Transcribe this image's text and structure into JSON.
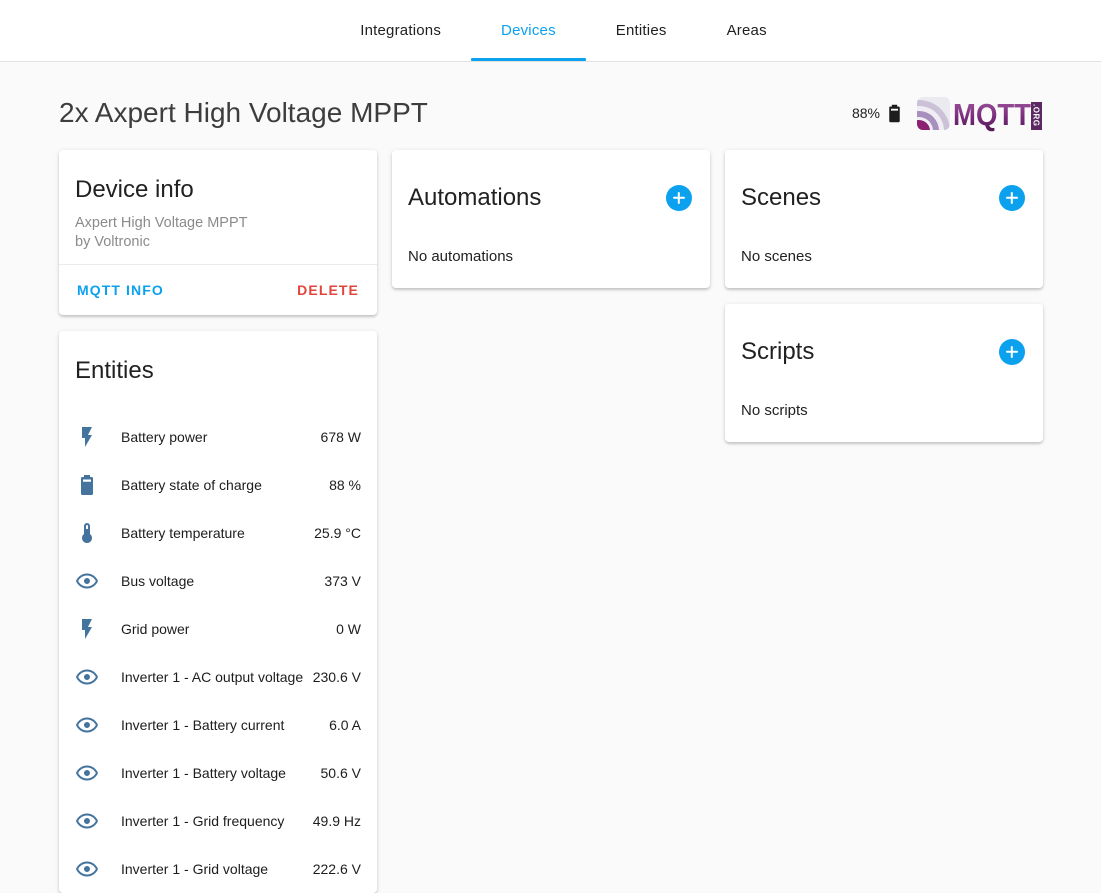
{
  "header": {
    "tabs": [
      {
        "label": "Integrations",
        "active": false
      },
      {
        "label": "Devices",
        "active": true
      },
      {
        "label": "Entities",
        "active": false
      },
      {
        "label": "Areas",
        "active": false
      }
    ]
  },
  "page": {
    "title": "2x Axpert High Voltage MPPT",
    "battery_percent": "88%",
    "brand_logo": {
      "text": "MQTT",
      "suffix": ".ORG"
    }
  },
  "device_info": {
    "title": "Device info",
    "model": "Axpert High Voltage MPPT",
    "manufacturer": "by Voltronic",
    "actions": {
      "info_label": "MQTT INFO",
      "delete_label": "DELETE"
    }
  },
  "entities_card": {
    "title": "Entities",
    "items": [
      {
        "icon": "flash",
        "name": "Battery power",
        "value": "678 W"
      },
      {
        "icon": "battery",
        "name": "Battery state of charge",
        "value": "88 %"
      },
      {
        "icon": "thermometer",
        "name": "Battery temperature",
        "value": "25.9 °C"
      },
      {
        "icon": "eye",
        "name": "Bus voltage",
        "value": "373 V"
      },
      {
        "icon": "flash",
        "name": "Grid power",
        "value": "0 W"
      },
      {
        "icon": "eye",
        "name": "Inverter 1 - AC output voltage",
        "value": "230.6 V"
      },
      {
        "icon": "eye",
        "name": "Inverter 1 - Battery current",
        "value": "6.0 A"
      },
      {
        "icon": "eye",
        "name": "Inverter 1 - Battery voltage",
        "value": "50.6 V"
      },
      {
        "icon": "eye",
        "name": "Inverter 1 - Grid frequency",
        "value": "49.9 Hz"
      },
      {
        "icon": "eye",
        "name": "Inverter 1 - Grid voltage",
        "value": "222.6 V"
      }
    ]
  },
  "automations_card": {
    "title": "Automations",
    "empty_text": "No automations"
  },
  "scenes_card": {
    "title": "Scenes",
    "empty_text": "No scenes"
  },
  "scripts_card": {
    "title": "Scripts",
    "empty_text": "No scripts"
  },
  "colors": {
    "accent_blue": "#0ba1ef",
    "delete_red": "#e0453c",
    "entity_icon_blue": "#44739e",
    "brand_purple": "#69266f",
    "page_background": "#fafafa"
  }
}
